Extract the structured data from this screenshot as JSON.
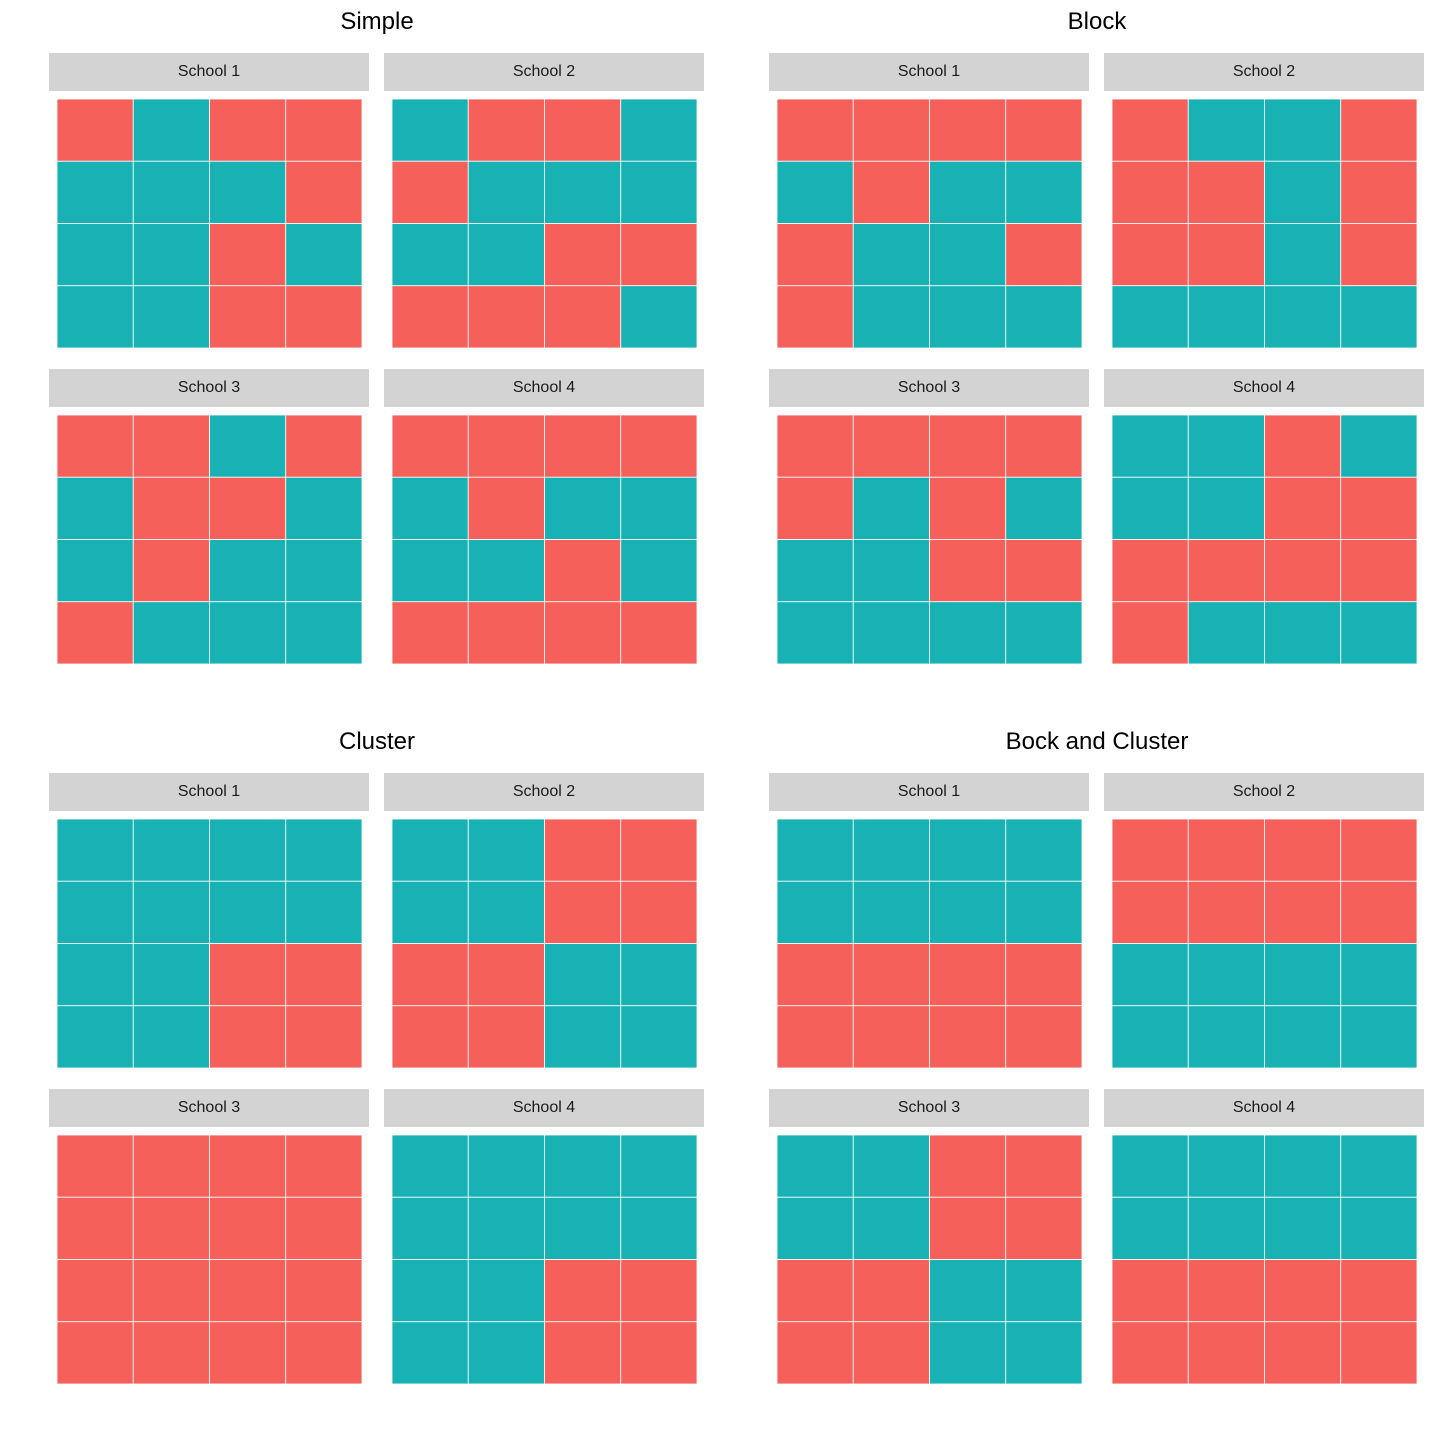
{
  "colors": {
    "treated": "#F5605A",
    "control": "#18B2B5",
    "gridline": "#ffffff"
  },
  "chart_data": [
    {
      "type": "heatmap",
      "title": "Simple",
      "facets": [
        {
          "label": "School 1",
          "cells": [
            [
              "T",
              "C",
              "T",
              "T"
            ],
            [
              "C",
              "C",
              "C",
              "T"
            ],
            [
              "C",
              "C",
              "T",
              "C"
            ],
            [
              "C",
              "C",
              "T",
              "T"
            ]
          ]
        },
        {
          "label": "School 2",
          "cells": [
            [
              "C",
              "T",
              "T",
              "C"
            ],
            [
              "T",
              "C",
              "C",
              "C"
            ],
            [
              "C",
              "C",
              "T",
              "T"
            ],
            [
              "T",
              "T",
              "T",
              "C"
            ]
          ]
        },
        {
          "label": "School 3",
          "cells": [
            [
              "T",
              "T",
              "C",
              "T"
            ],
            [
              "C",
              "T",
              "T",
              "C"
            ],
            [
              "C",
              "T",
              "C",
              "C"
            ],
            [
              "T",
              "C",
              "C",
              "C"
            ]
          ]
        },
        {
          "label": "School 4",
          "cells": [
            [
              "T",
              "T",
              "T",
              "T"
            ],
            [
              "C",
              "T",
              "C",
              "C"
            ],
            [
              "C",
              "C",
              "T",
              "C"
            ],
            [
              "T",
              "T",
              "T",
              "T"
            ]
          ]
        }
      ]
    },
    {
      "type": "heatmap",
      "title": "Block",
      "facets": [
        {
          "label": "School 1",
          "cells": [
            [
              "T",
              "T",
              "T",
              "T"
            ],
            [
              "C",
              "T",
              "C",
              "C"
            ],
            [
              "T",
              "C",
              "C",
              "T"
            ],
            [
              "T",
              "C",
              "C",
              "C"
            ]
          ]
        },
        {
          "label": "School 2",
          "cells": [
            [
              "T",
              "C",
              "C",
              "T"
            ],
            [
              "T",
              "T",
              "C",
              "T"
            ],
            [
              "T",
              "T",
              "C",
              "T"
            ],
            [
              "C",
              "C",
              "C",
              "C"
            ]
          ]
        },
        {
          "label": "School 3",
          "cells": [
            [
              "T",
              "T",
              "T",
              "T"
            ],
            [
              "T",
              "C",
              "T",
              "C"
            ],
            [
              "C",
              "C",
              "T",
              "T"
            ],
            [
              "C",
              "C",
              "C",
              "C"
            ]
          ]
        },
        {
          "label": "School 4",
          "cells": [
            [
              "C",
              "C",
              "T",
              "C"
            ],
            [
              "C",
              "C",
              "T",
              "T"
            ],
            [
              "T",
              "T",
              "T",
              "T"
            ],
            [
              "T",
              "C",
              "C",
              "C"
            ]
          ]
        }
      ]
    },
    {
      "type": "heatmap",
      "title": "Cluster",
      "facets": [
        {
          "label": "School 1",
          "cells": [
            [
              "C",
              "C",
              "C",
              "C"
            ],
            [
              "C",
              "C",
              "C",
              "C"
            ],
            [
              "C",
              "C",
              "T",
              "T"
            ],
            [
              "C",
              "C",
              "T",
              "T"
            ]
          ]
        },
        {
          "label": "School 2",
          "cells": [
            [
              "C",
              "C",
              "T",
              "T"
            ],
            [
              "C",
              "C",
              "T",
              "T"
            ],
            [
              "T",
              "T",
              "C",
              "C"
            ],
            [
              "T",
              "T",
              "C",
              "C"
            ]
          ]
        },
        {
          "label": "School 3",
          "cells": [
            [
              "T",
              "T",
              "T",
              "T"
            ],
            [
              "T",
              "T",
              "T",
              "T"
            ],
            [
              "T",
              "T",
              "T",
              "T"
            ],
            [
              "T",
              "T",
              "T",
              "T"
            ]
          ]
        },
        {
          "label": "School 4",
          "cells": [
            [
              "C",
              "C",
              "C",
              "C"
            ],
            [
              "C",
              "C",
              "C",
              "C"
            ],
            [
              "C",
              "C",
              "T",
              "T"
            ],
            [
              "C",
              "C",
              "T",
              "T"
            ]
          ]
        }
      ]
    },
    {
      "type": "heatmap",
      "title": "Bock and Cluster",
      "facets": [
        {
          "label": "School 1",
          "cells": [
            [
              "C",
              "C",
              "C",
              "C"
            ],
            [
              "C",
              "C",
              "C",
              "C"
            ],
            [
              "T",
              "T",
              "T",
              "T"
            ],
            [
              "T",
              "T",
              "T",
              "T"
            ]
          ]
        },
        {
          "label": "School 2",
          "cells": [
            [
              "T",
              "T",
              "T",
              "T"
            ],
            [
              "T",
              "T",
              "T",
              "T"
            ],
            [
              "C",
              "C",
              "C",
              "C"
            ],
            [
              "C",
              "C",
              "C",
              "C"
            ]
          ]
        },
        {
          "label": "School 3",
          "cells": [
            [
              "C",
              "C",
              "T",
              "T"
            ],
            [
              "C",
              "C",
              "T",
              "T"
            ],
            [
              "T",
              "T",
              "C",
              "C"
            ],
            [
              "T",
              "T",
              "C",
              "C"
            ]
          ]
        },
        {
          "label": "School 4",
          "cells": [
            [
              "C",
              "C",
              "C",
              "C"
            ],
            [
              "C",
              "C",
              "C",
              "C"
            ],
            [
              "T",
              "T",
              "T",
              "T"
            ],
            [
              "T",
              "T",
              "T",
              "T"
            ]
          ]
        }
      ]
    }
  ]
}
